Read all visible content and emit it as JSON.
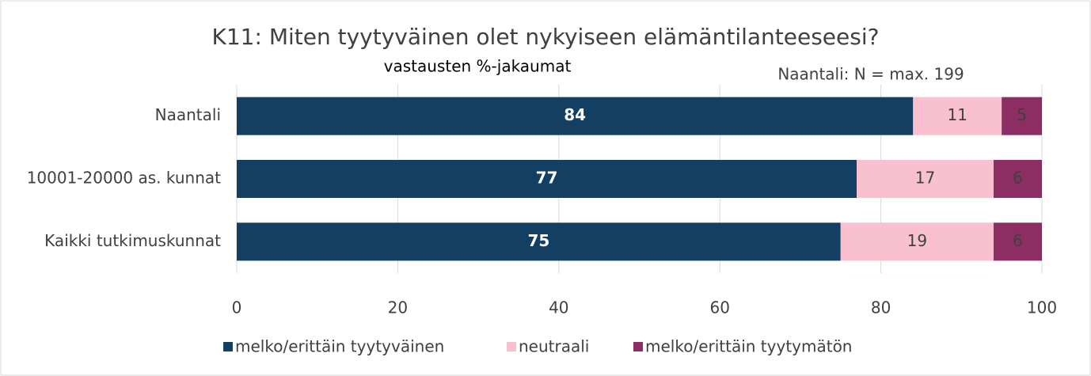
{
  "chart_data": {
    "type": "stacked-barh",
    "title": "K11: Miten tyytyväinen olet nykyiseen elämäntilanteeseesi?",
    "subtitle": "vastausten %-jakaumat",
    "annotation": "Naantali: N = max. 199",
    "categories": [
      "Naantali",
      "10001-20000 as. kunnat",
      "Kaikki tutkimuskunnat"
    ],
    "series": [
      {
        "name": "melko/erittäin tyytyväinen",
        "color": "#133f63",
        "values": [
          84,
          77,
          75
        ]
      },
      {
        "name": "neutraali",
        "color": "#f9c0d0",
        "values": [
          11,
          17,
          19
        ]
      },
      {
        "name": "melko/erittäin tyytymätön",
        "color": "#8c2e63",
        "values": [
          5,
          6,
          6
        ]
      }
    ],
    "xlim": [
      0,
      100
    ],
    "xticks": [
      0,
      20,
      40,
      60,
      80,
      100
    ],
    "grid": true,
    "legend": "bottom"
  }
}
